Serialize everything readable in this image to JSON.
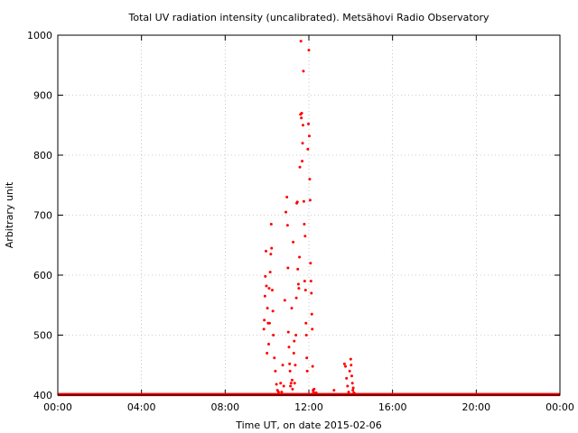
{
  "chart_data": {
    "type": "scatter",
    "title": "Total UV radiation intensity (uncalibrated). Metsähovi Radio Observatory",
    "xlabel": "Time UT, on date 2015-02-06",
    "ylabel": "Arbitrary unit",
    "x_unit": "hours UT",
    "xlim": [
      0,
      24
    ],
    "ylim": [
      400,
      1000
    ],
    "x_ticks": [
      {
        "value": 0,
        "label": "00:00"
      },
      {
        "value": 4,
        "label": "04:00"
      },
      {
        "value": 8,
        "label": "08:00"
      },
      {
        "value": 12,
        "label": "12:00"
      },
      {
        "value": 16,
        "label": "16:00"
      },
      {
        "value": 20,
        "label": "20:00"
      },
      {
        "value": 24,
        "label": "00:00"
      }
    ],
    "y_ticks": [
      {
        "value": 400,
        "label": "400"
      },
      {
        "value": 500,
        "label": "500"
      },
      {
        "value": 600,
        "label": "600"
      },
      {
        "value": 700,
        "label": "700"
      },
      {
        "value": 800,
        "label": "800"
      },
      {
        "value": 900,
        "label": "900"
      },
      {
        "value": 1000,
        "label": "1000"
      }
    ],
    "grid": true,
    "marker_color": "#ff0000",
    "baseline": {
      "x_start": 0,
      "x_end": 24,
      "y": 401
    },
    "series": [
      {
        "points": [
          [
            9.85,
            510
          ],
          [
            9.87,
            525
          ],
          [
            9.9,
            565
          ],
          [
            9.92,
            598
          ],
          [
            9.95,
            640
          ],
          [
            9.97,
            582
          ],
          [
            10.0,
            470
          ],
          [
            10.02,
            545
          ],
          [
            10.05,
            520
          ],
          [
            10.08,
            485
          ],
          [
            10.1,
            578
          ],
          [
            10.12,
            520
          ],
          [
            10.15,
            605
          ],
          [
            10.18,
            635
          ],
          [
            10.2,
            685
          ],
          [
            10.22,
            645
          ],
          [
            10.25,
            575
          ],
          [
            10.28,
            540
          ],
          [
            10.3,
            500
          ],
          [
            10.35,
            462
          ],
          [
            10.4,
            440
          ],
          [
            10.45,
            418
          ],
          [
            10.5,
            408
          ],
          [
            10.55,
            405
          ],
          [
            10.65,
            420
          ],
          [
            10.7,
            405
          ],
          [
            10.75,
            450
          ],
          [
            10.8,
            415
          ],
          [
            10.85,
            558
          ],
          [
            10.9,
            705
          ],
          [
            10.95,
            730
          ],
          [
            10.98,
            683
          ],
          [
            11.0,
            612
          ],
          [
            11.02,
            505
          ],
          [
            11.05,
            480
          ],
          [
            11.08,
            452
          ],
          [
            11.1,
            440
          ],
          [
            11.12,
            415
          ],
          [
            11.15,
            420
          ],
          [
            11.18,
            545
          ],
          [
            11.2,
            425
          ],
          [
            11.22,
            410
          ],
          [
            11.25,
            655
          ],
          [
            11.28,
            470
          ],
          [
            11.3,
            490
          ],
          [
            11.32,
            420
          ],
          [
            11.35,
            450
          ],
          [
            11.38,
            500
          ],
          [
            11.4,
            562
          ],
          [
            11.42,
            720
          ],
          [
            11.45,
            722
          ],
          [
            11.47,
            610
          ],
          [
            11.5,
            585
          ],
          [
            11.52,
            578
          ],
          [
            11.55,
            630
          ],
          [
            11.57,
            780
          ],
          [
            11.6,
            868
          ],
          [
            11.62,
            990
          ],
          [
            11.64,
            862
          ],
          [
            11.66,
            870
          ],
          [
            11.68,
            790
          ],
          [
            11.7,
            820
          ],
          [
            11.72,
            850
          ],
          [
            11.74,
            940
          ],
          [
            11.76,
            723
          ],
          [
            11.78,
            685
          ],
          [
            11.8,
            590
          ],
          [
            11.82,
            665
          ],
          [
            11.84,
            575
          ],
          [
            11.86,
            520
          ],
          [
            11.88,
            500
          ],
          [
            11.9,
            462
          ],
          [
            11.92,
            440
          ],
          [
            11.95,
            810
          ],
          [
            11.98,
            852
          ],
          [
            12.0,
            975
          ],
          [
            12.02,
            832
          ],
          [
            12.04,
            760
          ],
          [
            12.06,
            725
          ],
          [
            12.08,
            620
          ],
          [
            12.1,
            590
          ],
          [
            12.12,
            570
          ],
          [
            12.14,
            535
          ],
          [
            12.16,
            510
          ],
          [
            12.18,
            448
          ],
          [
            12.2,
            408
          ],
          [
            12.22,
            405
          ],
          [
            12.25,
            410
          ],
          [
            12.3,
            402
          ],
          [
            12.35,
            404
          ],
          [
            13.2,
            408
          ],
          [
            13.7,
            452
          ],
          [
            13.75,
            448
          ],
          [
            13.8,
            428
          ],
          [
            13.85,
            415
          ],
          [
            13.9,
            405
          ],
          [
            13.95,
            440
          ],
          [
            14.0,
            460
          ],
          [
            14.02,
            450
          ],
          [
            14.05,
            432
          ],
          [
            14.08,
            420
          ],
          [
            14.1,
            408
          ],
          [
            14.12,
            412
          ],
          [
            14.15,
            404
          ],
          [
            14.2,
            402
          ]
        ]
      }
    ]
  }
}
